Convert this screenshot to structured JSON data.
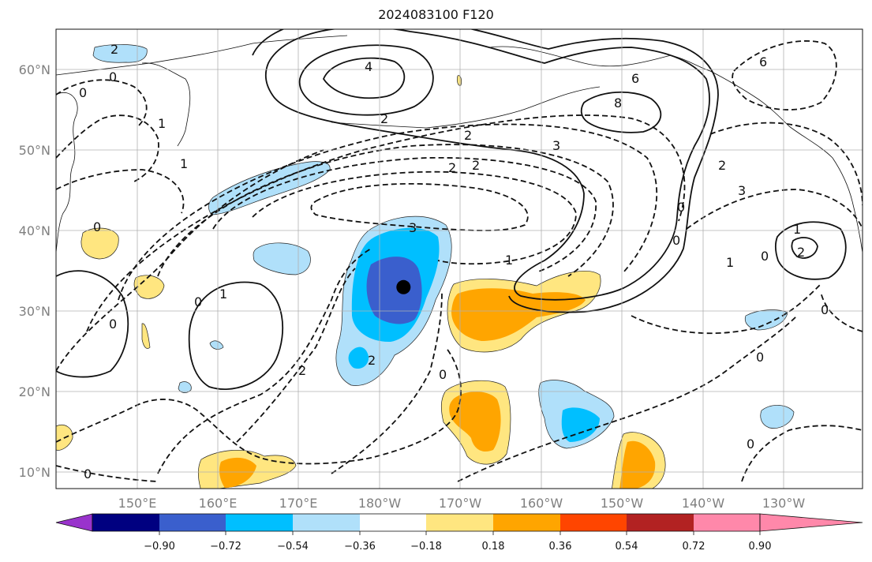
{
  "title": "2024083100 F120",
  "map": {
    "lat_labels": [
      "60°N",
      "50°N",
      "40°N",
      "30°N",
      "20°N",
      "10°N"
    ],
    "lon_labels": [
      "150°E",
      "160°E",
      "170°E",
      "180°W",
      "170°W",
      "160°W",
      "150°W",
      "140°W",
      "130°W"
    ],
    "marker": {
      "name": "storm-center-dot",
      "lon": 183,
      "lat": 33
    },
    "contour_labels": [
      "2",
      "0",
      "0",
      "1",
      "1",
      "0",
      "0",
      "1",
      "0",
      "2",
      "4",
      "2",
      "2",
      "3",
      "2",
      "2",
      "3",
      "6",
      "6",
      "8",
      "3",
      "0",
      "0",
      "1",
      "2",
      "0",
      "1",
      "1",
      "2",
      "0",
      "2",
      "0",
      "0",
      "0",
      "0"
    ]
  },
  "colorbar": {
    "ticks": [
      "−0.90",
      "−0.72",
      "−0.54",
      "−0.36",
      "−0.18",
      "0.18",
      "0.36",
      "0.54",
      "0.72",
      "0.90"
    ],
    "colors": [
      "#9933cc",
      "#000080",
      "#3a5fcd",
      "#00bfff",
      "#b0e0fa",
      "#ffffff",
      "#ffe680",
      "#ffa500",
      "#ff4500",
      "#b22222",
      "#ff88aa"
    ]
  }
}
